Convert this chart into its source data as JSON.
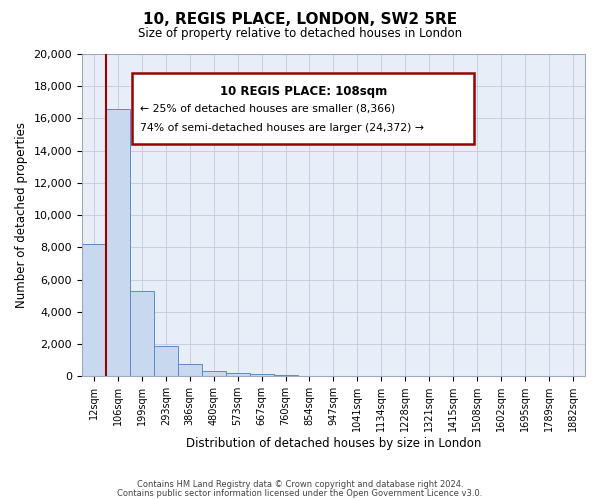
{
  "title": "10, REGIS PLACE, LONDON, SW2 5RE",
  "subtitle": "Size of property relative to detached houses in London",
  "xlabel": "Distribution of detached houses by size in London",
  "ylabel": "Number of detached properties",
  "bar_labels": [
    "12sqm",
    "106sqm",
    "199sqm",
    "293sqm",
    "386sqm",
    "480sqm",
    "573sqm",
    "667sqm",
    "760sqm",
    "854sqm",
    "947sqm",
    "1041sqm",
    "1134sqm",
    "1228sqm",
    "1321sqm",
    "1415sqm",
    "1508sqm",
    "1602sqm",
    "1695sqm",
    "1789sqm",
    "1882sqm"
  ],
  "bar_values": [
    8200,
    16600,
    5300,
    1850,
    750,
    300,
    170,
    120,
    90,
    0,
    0,
    0,
    0,
    0,
    0,
    0,
    0,
    0,
    0,
    0,
    0
  ],
  "bar_color": "#c8d8ee",
  "bar_edge_color": "#5b8ac5",
  "ylim": [
    0,
    20000
  ],
  "yticks": [
    0,
    2000,
    4000,
    6000,
    8000,
    10000,
    12000,
    14000,
    16000,
    18000,
    20000
  ],
  "property_line_color": "#990000",
  "annotation_title": "10 REGIS PLACE: 108sqm",
  "annotation_line1": "← 25% of detached houses are smaller (8,366)",
  "annotation_line2": "74% of semi-detached houses are larger (24,372) →",
  "annotation_box_color": "#ffffff",
  "annotation_box_edge": "#990000",
  "footer1": "Contains HM Land Registry data © Crown copyright and database right 2024.",
  "footer2": "Contains public sector information licensed under the Open Government Licence v3.0.",
  "grid_color": "#c0c8dc",
  "bg_color": "#e8eef8"
}
